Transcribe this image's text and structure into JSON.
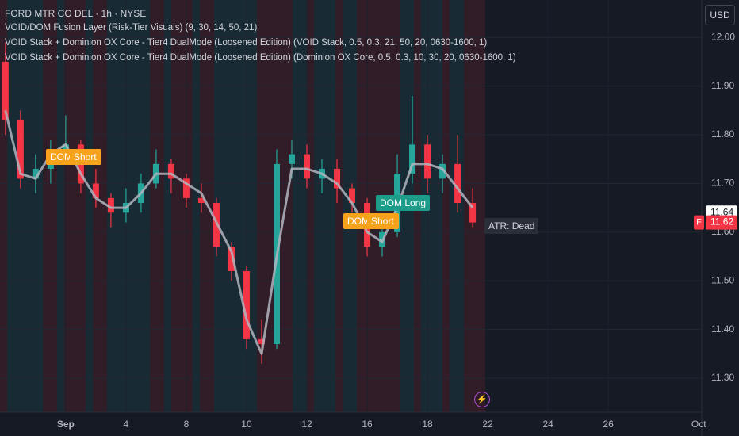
{
  "header": {
    "symbol": "FORD MTR CO DEL · 1h · NYSE",
    "indicators": [
      "VOID/DOM Fusion Layer (Risk-Tier Visuals) (9, 30, 14, 50, 21)",
      "VOID Stack + Dominion OX Core - Tier4 DualMode (Loosened Edition) (VOID Stack, 0.5, 0.3, 21, 50, 20, 0630-1600, 1)",
      "VOID Stack + Dominion OX Core - Tier4 DualMode (Loosened Edition) (Dominion OX Core, 0.5, 0.3, 10, 30, 20, 0630-1600, 1)"
    ],
    "currency": "USD"
  },
  "signals": [
    "DOM Short",
    "Short",
    "DOM Short",
    "Short",
    "DOM Long"
  ],
  "status_label": "ATR: Dead",
  "symbol_badge": "F",
  "chart_data": {
    "type": "candlestick",
    "x": [
      -2,
      -1.5,
      -1,
      -0.5,
      0,
      0.5,
      1,
      1.5,
      2,
      2.5,
      3,
      3.5,
      4,
      4.5,
      5,
      5.5,
      6,
      6.5,
      7,
      7.5,
      8,
      8.5,
      9,
      9.5,
      10,
      10.5,
      11,
      11.5,
      12,
      12.5,
      13,
      13.5
    ],
    "open": [
      11.95,
      11.83,
      11.71,
      11.73,
      11.77,
      11.78,
      11.7,
      11.67,
      11.64,
      11.66,
      11.7,
      11.74,
      11.71,
      11.67,
      11.66,
      11.57,
      11.52,
      11.38,
      11.37,
      11.74,
      11.76,
      11.71,
      11.73,
      11.69,
      11.66,
      11.57,
      11.6,
      11.72,
      11.78,
      11.71,
      11.74,
      11.66
    ],
    "high": [
      11.99,
      11.85,
      11.76,
      11.79,
      11.84,
      11.79,
      11.73,
      11.68,
      11.69,
      11.72,
      11.77,
      11.75,
      11.72,
      11.7,
      11.67,
      11.58,
      11.53,
      11.42,
      11.77,
      11.79,
      11.78,
      11.75,
      11.75,
      11.7,
      11.67,
      11.62,
      11.76,
      11.88,
      11.8,
      11.76,
      11.8,
      11.69
    ],
    "low": [
      11.8,
      11.69,
      11.68,
      11.7,
      11.74,
      11.68,
      11.65,
      11.61,
      11.62,
      11.64,
      11.69,
      11.68,
      11.65,
      11.64,
      11.55,
      11.5,
      11.36,
      11.33,
      11.36,
      11.71,
      11.69,
      11.68,
      11.66,
      11.64,
      11.55,
      11.55,
      11.59,
      11.7,
      11.68,
      11.68,
      11.64,
      11.61
    ],
    "close": [
      11.83,
      11.71,
      11.73,
      11.77,
      11.78,
      11.7,
      11.67,
      11.64,
      11.66,
      11.7,
      11.74,
      11.71,
      11.67,
      11.66,
      11.57,
      11.52,
      11.38,
      11.37,
      11.74,
      11.76,
      11.71,
      11.73,
      11.69,
      11.66,
      11.57,
      11.6,
      11.72,
      11.78,
      11.71,
      11.74,
      11.66,
      11.62
    ],
    "line": {
      "color": "#b2b5be",
      "values": [
        11.85,
        11.72,
        11.71,
        11.76,
        11.78,
        11.72,
        11.67,
        11.65,
        11.65,
        11.68,
        11.72,
        11.72,
        11.7,
        11.68,
        11.62,
        11.56,
        11.42,
        11.35,
        11.55,
        11.73,
        11.73,
        11.72,
        11.7,
        11.66,
        11.6,
        11.58,
        11.65,
        11.74,
        11.74,
        11.73,
        11.69,
        11.65
      ]
    },
    "up_color": "#26a69a",
    "down_color": "#f23645",
    "xlim": [
      -2.18,
      21.1
    ],
    "ylim": [
      11.23,
      12.077
    ],
    "xticks": [
      {
        "value": 0,
        "label": "Sep"
      },
      {
        "value": 2,
        "label": "4"
      },
      {
        "value": 4,
        "label": "8"
      },
      {
        "value": 6,
        "label": "10"
      },
      {
        "value": 8,
        "label": "12"
      },
      {
        "value": 10,
        "label": "16"
      },
      {
        "value": 12,
        "label": "18"
      },
      {
        "value": 14,
        "label": "22"
      },
      {
        "value": 16,
        "label": "24"
      },
      {
        "value": 18,
        "label": "26"
      },
      {
        "value": 21,
        "label": "Oct"
      }
    ],
    "yticks": [
      {
        "value": 11.3,
        "label": "11.30"
      },
      {
        "value": 11.4,
        "label": "11.40"
      },
      {
        "value": 11.5,
        "label": "11.50"
      },
      {
        "value": 11.6,
        "label": "11.60"
      },
      {
        "value": 11.7,
        "label": "11.70"
      },
      {
        "value": 11.8,
        "label": "11.80"
      },
      {
        "value": 11.9,
        "label": "11.90"
      },
      {
        "value": 12,
        "label": "12.00"
      }
    ],
    "price_labels": [
      11.64,
      11.62
    ],
    "grid": true
  }
}
